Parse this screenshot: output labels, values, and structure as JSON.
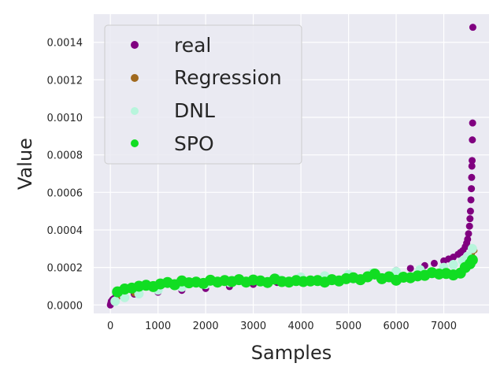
{
  "chart_data": {
    "type": "scatter",
    "title": "",
    "xlabel": "Samples",
    "ylabel": "Value",
    "xlim": [
      -350,
      7950
    ],
    "ylim": [
      -4.5e-05,
      0.00155
    ],
    "xticks": [
      0,
      1000,
      2000,
      3000,
      4000,
      5000,
      6000,
      7000
    ],
    "xtick_labels": [
      "0",
      "1000",
      "2000",
      "3000",
      "4000",
      "5000",
      "6000",
      "7000"
    ],
    "yticks": [
      0,
      0.0002,
      0.0004,
      0.0006,
      0.0008,
      0.001,
      0.0012,
      0.0014
    ],
    "ytick_labels": [
      "0.0000",
      "0.0002",
      "0.0004",
      "0.0006",
      "0.0008",
      "0.0010",
      "0.0012",
      "0.0014"
    ],
    "grid": true,
    "legend_position": "top-left",
    "series": [
      {
        "name": "real",
        "color": "#800080",
        "x": [
          0,
          10,
          20,
          50,
          100,
          200,
          500,
          1000,
          1500,
          2000,
          2500,
          3000,
          3500,
          4000,
          4500,
          5000,
          5500,
          6000,
          6300,
          6600,
          6800,
          7000,
          7100,
          7200,
          7300,
          7350,
          7400,
          7450,
          7480,
          7500,
          7520,
          7540,
          7550,
          7560,
          7570,
          7580,
          7585,
          7590,
          7595,
          7600,
          7605,
          7610
        ],
        "y": [
          0.0,
          1e-05,
          2e-05,
          3e-05,
          4e-05,
          5e-05,
          5.8e-05,
          6.8e-05,
          7.8e-05,
          8.8e-05,
          9.8e-05,
          0.00011,
          0.00012,
          0.00013,
          0.000142,
          0.000155,
          0.000168,
          0.000185,
          0.000195,
          0.00021,
          0.000222,
          0.000235,
          0.000245,
          0.000255,
          0.00027,
          0.00028,
          0.00029,
          0.00031,
          0.00033,
          0.00035,
          0.00038,
          0.00042,
          0.00046,
          0.0005,
          0.00056,
          0.00062,
          0.00068,
          0.00074,
          0.00077,
          0.00088,
          0.00097,
          0.00148
        ]
      },
      {
        "name": "Regression",
        "color": "#a0691e",
        "x": [
          150,
          500,
          1000,
          1500,
          2000,
          2500,
          3000,
          3500,
          4000,
          4500,
          5000,
          5500,
          6000,
          6500,
          7000,
          7200,
          7400,
          7500,
          7600,
          7650
        ],
        "y": [
          4e-05,
          6e-05,
          8e-05,
          9.5e-05,
          0.00011,
          0.000122,
          0.000132,
          0.000142,
          0.00015,
          0.000158,
          0.000165,
          0.000172,
          0.00018,
          0.00019,
          0.0002,
          0.00021,
          0.000225,
          0.000245,
          0.000275,
          0.00029
        ]
      },
      {
        "name": "DNL",
        "color": "#b8f5dc",
        "x": [
          100,
          300,
          600,
          1000,
          1500,
          2000,
          2500,
          3000,
          3500,
          4000,
          4500,
          5000,
          5500,
          6000,
          6500,
          7000,
          7200,
          7400,
          7500,
          7600
        ],
        "y": [
          2e-05,
          4e-05,
          6e-05,
          8e-05,
          9.5e-05,
          0.00011,
          0.00012,
          0.00013,
          0.00014,
          0.000148,
          0.000155,
          0.000162,
          0.00017,
          0.000178,
          0.000188,
          0.0002,
          0.000215,
          0.000235,
          0.00026,
          0.0003
        ]
      },
      {
        "name": "SPO",
        "color": "#11dd22",
        "x": [
          150,
          300,
          450,
          600,
          750,
          900,
          1050,
          1200,
          1350,
          1500,
          1650,
          1800,
          1950,
          2100,
          2250,
          2400,
          2550,
          2700,
          2850,
          3000,
          3150,
          3300,
          3450,
          3600,
          3750,
          3900,
          4050,
          4200,
          4350,
          4500,
          4650,
          4800,
          4950,
          5100,
          5250,
          5400,
          5550,
          5700,
          5850,
          6000,
          6150,
          6300,
          6450,
          6600,
          6750,
          6900,
          7050,
          7200,
          7350,
          7450,
          7550,
          7600
        ],
        "y": [
          7e-05,
          8.5e-05,
          9e-05,
          0.0001,
          0.000105,
          9.8e-05,
          0.000112,
          0.00012,
          0.000108,
          0.000128,
          0.000118,
          0.000122,
          0.000115,
          0.000132,
          0.000122,
          0.00013,
          0.000125,
          0.000135,
          0.000122,
          0.000133,
          0.000128,
          0.00012,
          0.000138,
          0.000125,
          0.000122,
          0.00013,
          0.000125,
          0.000128,
          0.00013,
          0.000122,
          0.000135,
          0.000128,
          0.00014,
          0.000145,
          0.000135,
          0.00015,
          0.000165,
          0.00014,
          0.00015,
          0.000132,
          0.000148,
          0.000145,
          0.000155,
          0.000158,
          0.000172,
          0.000165,
          0.000168,
          0.00016,
          0.00017,
          0.0002,
          0.00022,
          0.00024
        ]
      }
    ]
  }
}
